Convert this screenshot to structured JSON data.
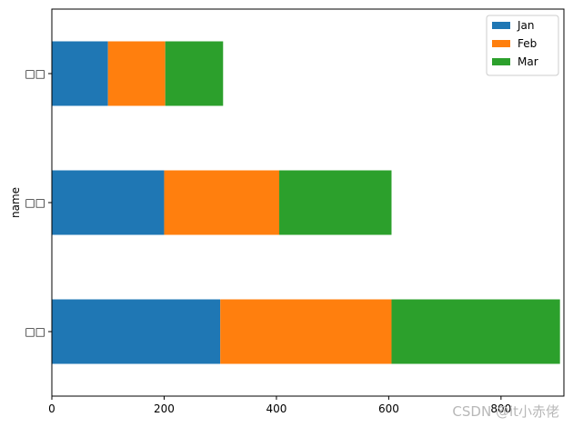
{
  "chart_data": {
    "type": "bar",
    "orientation": "horizontal",
    "stacked": true,
    "categories": [
      "□□",
      "□□",
      "□□"
    ],
    "series": [
      {
        "name": "Jan",
        "values": [
          300,
          200,
          100
        ],
        "color": "#1f77b4"
      },
      {
        "name": "Feb",
        "values": [
          305,
          205,
          102
        ],
        "color": "#ff7f0e"
      },
      {
        "name": "Mar",
        "values": [
          300,
          200,
          103
        ],
        "color": "#2ca02c"
      }
    ],
    "title": "",
    "xlabel": "",
    "ylabel": "name",
    "xlim": [
      0,
      912
    ],
    "xticks": [
      0,
      200,
      400,
      600,
      800
    ],
    "grid": false,
    "legend_position": "top-right"
  },
  "watermark": "CSDN @it小赤佬"
}
